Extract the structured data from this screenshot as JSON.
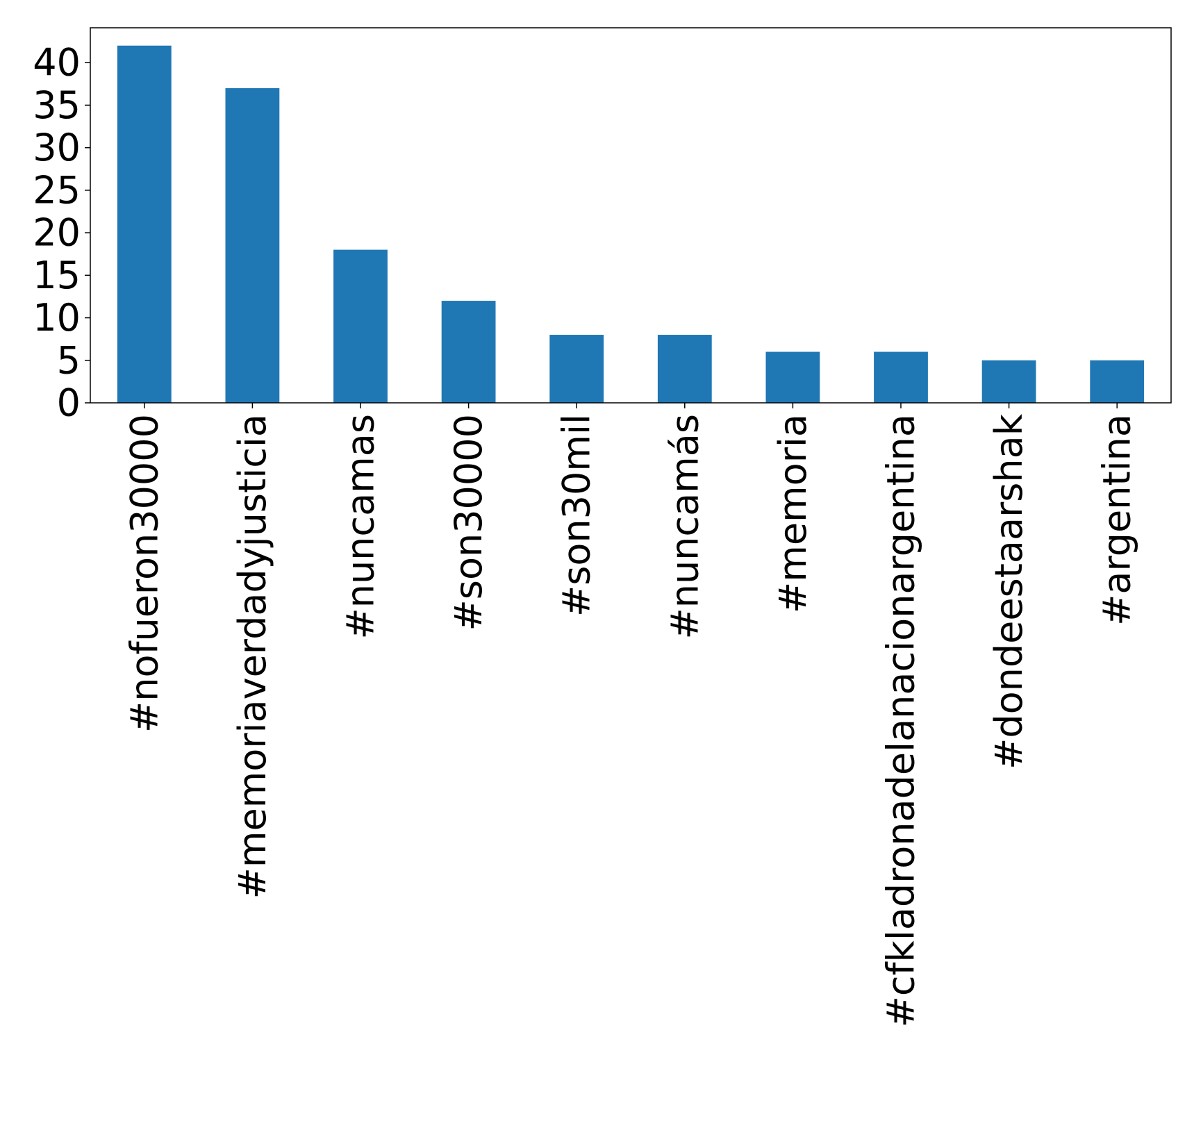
{
  "chart_data": {
    "type": "bar",
    "categories": [
      "#nofueron30000",
      "#memoriaverdadyjusticia",
      "#nuncamas",
      "#son30000",
      "#son30mil",
      "#nuncamás",
      "#memoria",
      "#cfkladronadelanacionargentina",
      "#dondeestaarshak",
      "#argentina"
    ],
    "values": [
      42,
      37,
      18,
      12,
      8,
      8,
      6,
      6,
      5,
      5
    ],
    "ylim": [
      0,
      44.1
    ],
    "yticks": [
      0,
      5,
      10,
      15,
      20,
      25,
      30,
      35,
      40
    ],
    "bar_color": "#1f77b4",
    "legend": false,
    "grid": false,
    "title": "",
    "xlabel": "",
    "ylabel": ""
  }
}
